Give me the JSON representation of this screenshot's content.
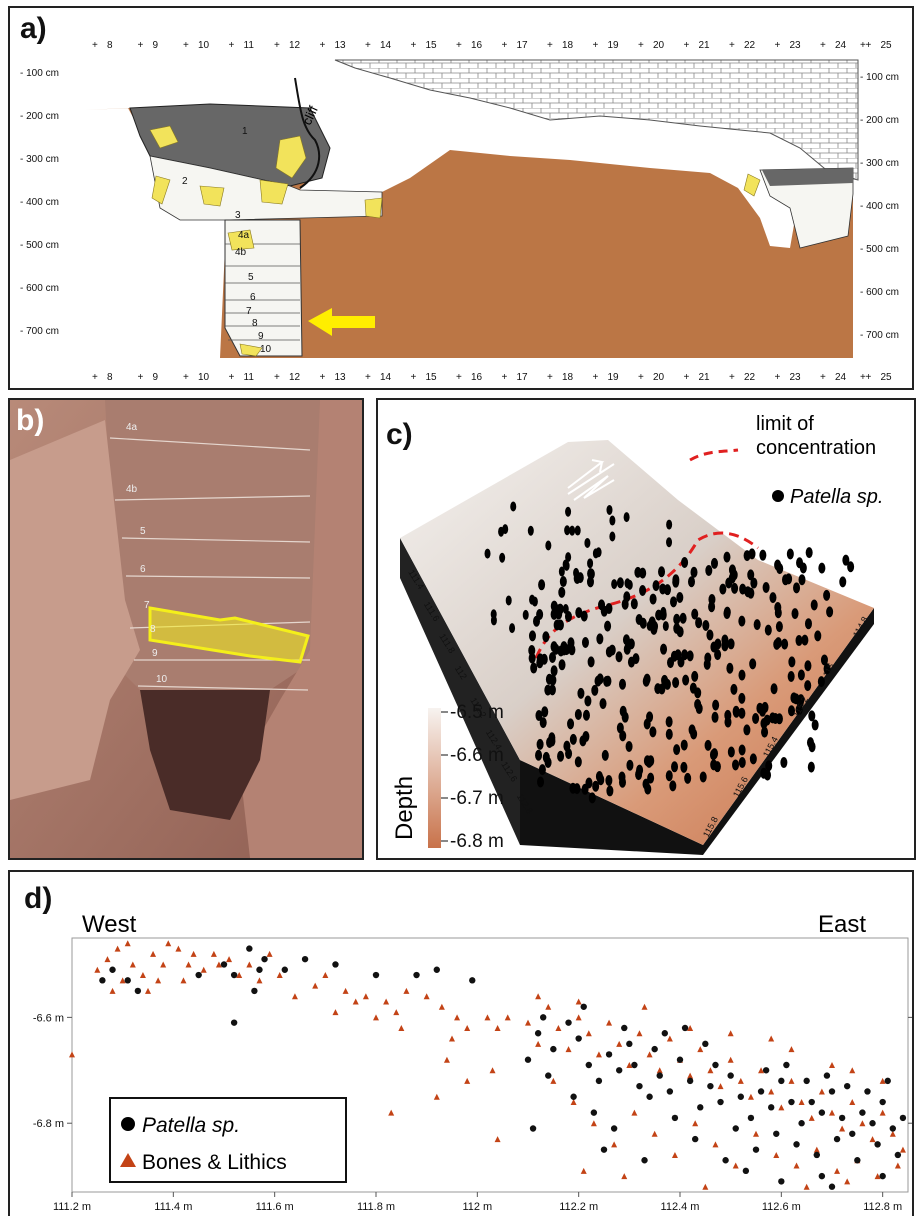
{
  "panel_a": {
    "label": "a)",
    "grid_numbers": [
      "8",
      "9",
      "10",
      "11",
      "12",
      "13",
      "14",
      "15",
      "16",
      "17",
      "18",
      "19",
      "20",
      "21",
      "22",
      "23",
      "24",
      "25"
    ],
    "depth_labels_left": [
      "- 100 cm",
      "- 200 cm",
      "- 300 cm",
      "- 400 cm",
      "- 500 cm",
      "- 600 cm",
      "- 700 cm"
    ],
    "depth_labels_right": [
      "- 100 cm",
      "- 200 cm",
      "- 300 cm",
      "- 400 cm",
      "- 500 cm",
      "- 600 cm",
      "- 700 cm"
    ],
    "cliff_label": "cliff",
    "layer_labels": [
      "1",
      "2",
      "3",
      "4a",
      "4b",
      "5",
      "6",
      "7",
      "8",
      "9",
      "10"
    ],
    "colors": {
      "sediment": "#bb7645",
      "dark_layer": "#666666",
      "yellow": "#f2e35b",
      "arrow": "#ffee00"
    }
  },
  "panel_b": {
    "label": "b)",
    "layer_labels": [
      "4a",
      "4b",
      "5",
      "6",
      "7",
      "8",
      "9",
      "10"
    ],
    "highlight_color": "#f4ef1a"
  },
  "panel_c": {
    "label": "c)",
    "legend_line": "limit of concentration",
    "legend_line_parts": [
      "limit of",
      "concentration"
    ],
    "legend_dot": "Patella sp.",
    "depth_title": "Depth",
    "depth_ticks": [
      "-6.5 m",
      "-6.6 m",
      "-6.7 m",
      "-6.8 m"
    ],
    "left_axis_ticks": [
      "111.4",
      "111.6",
      "111.8",
      "112",
      "112.2",
      "112.4",
      "112.6",
      "112.8"
    ],
    "right_axis_ticks": [
      "115.8",
      "115.6",
      "115.4",
      "115.2",
      "115",
      "114.8"
    ],
    "colors": {
      "light": "#f4f1ee",
      "dark": "#c8724a",
      "dash": "#e02020"
    }
  },
  "panel_d": {
    "label": "d)",
    "west_label": "West",
    "east_label": "East",
    "legend": {
      "patella": "Patella sp.",
      "bones": "Bones & Lithics"
    },
    "chart_data": {
      "type": "scatter",
      "xlim": [
        111.2,
        112.85
      ],
      "ylim": [
        -6.93,
        -6.45
      ],
      "x_ticks": [
        "111.2 m",
        "111.4 m",
        "111.6 m",
        "111.8 m",
        "112 m",
        "112.2 m",
        "112.4 m",
        "112.6 m",
        "112.8 m"
      ],
      "y_ticks": [
        "-6.6 m",
        "-6.8 m"
      ],
      "series": [
        {
          "name": "Patella sp.",
          "color": "#111111",
          "points": [
            [
              111.26,
              -6.53
            ],
            [
              111.28,
              -6.51
            ],
            [
              111.31,
              -6.53
            ],
            [
              111.33,
              -6.55
            ],
            [
              111.45,
              -6.52
            ],
            [
              111.5,
              -6.5
            ],
            [
              111.52,
              -6.52
            ],
            [
              111.55,
              -6.47
            ],
            [
              111.57,
              -6.51
            ],
            [
              111.62,
              -6.51
            ],
            [
              111.66,
              -6.49
            ],
            [
              111.72,
              -6.5
            ],
            [
              111.8,
              -6.52
            ],
            [
              111.88,
              -6.52
            ],
            [
              111.92,
              -6.51
            ],
            [
              111.99,
              -6.53
            ],
            [
              111.52,
              -6.61
            ],
            [
              111.58,
              -6.49
            ],
            [
              111.56,
              -6.55
            ],
            [
              112.1,
              -6.68
            ],
            [
              112.12,
              -6.63
            ],
            [
              112.15,
              -6.66
            ],
            [
              112.18,
              -6.61
            ],
            [
              112.2,
              -6.64
            ],
            [
              112.22,
              -6.69
            ],
            [
              112.24,
              -6.72
            ],
            [
              112.26,
              -6.67
            ],
            [
              112.28,
              -6.7
            ],
            [
              112.3,
              -6.65
            ],
            [
              112.32,
              -6.73
            ],
            [
              112.34,
              -6.75
            ],
            [
              112.36,
              -6.71
            ],
            [
              112.38,
              -6.74
            ],
            [
              112.4,
              -6.68
            ],
            [
              112.42,
              -6.72
            ],
            [
              112.44,
              -6.77
            ],
            [
              112.46,
              -6.73
            ],
            [
              112.48,
              -6.76
            ],
            [
              112.5,
              -6.71
            ],
            [
              112.52,
              -6.75
            ],
            [
              112.54,
              -6.79
            ],
            [
              112.56,
              -6.74
            ],
            [
              112.58,
              -6.77
            ],
            [
              112.6,
              -6.72
            ],
            [
              112.62,
              -6.76
            ],
            [
              112.64,
              -6.8
            ],
            [
              112.66,
              -6.76
            ],
            [
              112.68,
              -6.78
            ],
            [
              112.7,
              -6.74
            ],
            [
              112.72,
              -6.79
            ],
            [
              112.74,
              -6.82
            ],
            [
              112.76,
              -6.78
            ],
            [
              112.78,
              -6.8
            ],
            [
              112.8,
              -6.76
            ],
            [
              112.82,
              -6.81
            ],
            [
              112.84,
              -6.79
            ],
            [
              112.14,
              -6.71
            ],
            [
              112.19,
              -6.75
            ],
            [
              112.23,
              -6.78
            ],
            [
              112.27,
              -6.81
            ],
            [
              112.31,
              -6.69
            ],
            [
              112.35,
              -6.66
            ],
            [
              112.39,
              -6.79
            ],
            [
              112.43,
              -6.83
            ],
            [
              112.47,
              -6.69
            ],
            [
              112.51,
              -6.81
            ],
            [
              112.55,
              -6.85
            ],
            [
              112.59,
              -6.82
            ],
            [
              112.63,
              -6.84
            ],
            [
              112.67,
              -6.86
            ],
            [
              112.71,
              -6.83
            ],
            [
              112.75,
              -6.87
            ],
            [
              112.79,
              -6.84
            ],
            [
              112.83,
              -6.86
            ],
            [
              112.13,
              -6.6
            ],
            [
              112.21,
              -6.58
            ],
            [
              112.29,
              -6.62
            ],
            [
              112.37,
              -6.63
            ],
            [
              112.41,
              -6.62
            ],
            [
              112.45,
              -6.65
            ],
            [
              112.57,
              -6.7
            ],
            [
              112.61,
              -6.69
            ],
            [
              112.65,
              -6.72
            ],
            [
              112.69,
              -6.71
            ],
            [
              112.73,
              -6.73
            ],
            [
              112.77,
              -6.74
            ],
            [
              112.81,
              -6.72
            ],
            [
              112.6,
              -6.91
            ],
            [
              112.7,
              -6.92
            ],
            [
              112.68,
              -6.9
            ],
            [
              112.8,
              -6.9
            ],
            [
              112.11,
              -6.81
            ],
            [
              112.25,
              -6.85
            ],
            [
              112.33,
              -6.87
            ],
            [
              112.49,
              -6.87
            ],
            [
              112.53,
              -6.89
            ]
          ]
        },
        {
          "name": "Bones & Lithics",
          "color": "#c34316",
          "points": [
            [
              111.2,
              -6.67
            ],
            [
              111.25,
              -6.51
            ],
            [
              111.27,
              -6.49
            ],
            [
              111.29,
              -6.47
            ],
            [
              111.31,
              -6.46
            ],
            [
              111.32,
              -6.5
            ],
            [
              111.34,
              -6.52
            ],
            [
              111.36,
              -6.48
            ],
            [
              111.38,
              -6.5
            ],
            [
              111.39,
              -6.46
            ],
            [
              111.41,
              -6.47
            ],
            [
              111.43,
              -6.5
            ],
            [
              111.44,
              -6.48
            ],
            [
              111.46,
              -6.51
            ],
            [
              111.48,
              -6.48
            ],
            [
              111.49,
              -6.5
            ],
            [
              111.51,
              -6.49
            ],
            [
              111.53,
              -6.52
            ],
            [
              111.55,
              -6.5
            ],
            [
              111.57,
              -6.53
            ],
            [
              111.59,
              -6.48
            ],
            [
              111.28,
              -6.55
            ],
            [
              111.3,
              -6.53
            ],
            [
              111.35,
              -6.55
            ],
            [
              111.37,
              -6.53
            ],
            [
              111.42,
              -6.53
            ],
            [
              111.61,
              -6.52
            ],
            [
              111.64,
              -6.56
            ],
            [
              111.68,
              -6.54
            ],
            [
              111.7,
              -6.52
            ],
            [
              111.74,
              -6.55
            ],
            [
              111.76,
              -6.57
            ],
            [
              111.78,
              -6.56
            ],
            [
              111.82,
              -6.57
            ],
            [
              111.84,
              -6.59
            ],
            [
              111.86,
              -6.55
            ],
            [
              111.9,
              -6.56
            ],
            [
              111.93,
              -6.58
            ],
            [
              111.96,
              -6.6
            ],
            [
              111.72,
              -6.59
            ],
            [
              111.8,
              -6.6
            ],
            [
              111.85,
              -6.62
            ],
            [
              111.95,
              -6.64
            ],
            [
              111.98,
              -6.62
            ],
            [
              112.02,
              -6.6
            ],
            [
              112.04,
              -6.62
            ],
            [
              112.06,
              -6.6
            ],
            [
              111.83,
              -6.78
            ],
            [
              111.92,
              -6.75
            ],
            [
              111.98,
              -6.72
            ],
            [
              112.03,
              -6.7
            ],
            [
              112.04,
              -6.83
            ],
            [
              111.94,
              -6.68
            ],
            [
              112.1,
              -6.61
            ],
            [
              112.12,
              -6.65
            ],
            [
              112.14,
              -6.58
            ],
            [
              112.16,
              -6.62
            ],
            [
              112.18,
              -6.66
            ],
            [
              112.2,
              -6.6
            ],
            [
              112.22,
              -6.63
            ],
            [
              112.24,
              -6.67
            ],
            [
              112.26,
              -6.61
            ],
            [
              112.28,
              -6.65
            ],
            [
              112.3,
              -6.69
            ],
            [
              112.32,
              -6.63
            ],
            [
              112.34,
              -6.67
            ],
            [
              112.36,
              -6.7
            ],
            [
              112.38,
              -6.64
            ],
            [
              112.4,
              -6.68
            ],
            [
              112.42,
              -6.71
            ],
            [
              112.44,
              -6.66
            ],
            [
              112.46,
              -6.7
            ],
            [
              112.48,
              -6.73
            ],
            [
              112.5,
              -6.68
            ],
            [
              112.52,
              -6.72
            ],
            [
              112.54,
              -6.75
            ],
            [
              112.56,
              -6.7
            ],
            [
              112.58,
              -6.74
            ],
            [
              112.6,
              -6.77
            ],
            [
              112.62,
              -6.72
            ],
            [
              112.64,
              -6.76
            ],
            [
              112.66,
              -6.79
            ],
            [
              112.68,
              -6.74
            ],
            [
              112.7,
              -6.78
            ],
            [
              112.72,
              -6.81
            ],
            [
              112.74,
              -6.76
            ],
            [
              112.76,
              -6.8
            ],
            [
              112.78,
              -6.83
            ],
            [
              112.8,
              -6.78
            ],
            [
              112.82,
              -6.82
            ],
            [
              112.84,
              -6.85
            ],
            [
              112.15,
              -6.72
            ],
            [
              112.19,
              -6.76
            ],
            [
              112.23,
              -6.8
            ],
            [
              112.27,
              -6.84
            ],
            [
              112.31,
              -6.78
            ],
            [
              112.35,
              -6.82
            ],
            [
              112.39,
              -6.86
            ],
            [
              112.43,
              -6.8
            ],
            [
              112.47,
              -6.84
            ],
            [
              112.51,
              -6.88
            ],
            [
              112.55,
              -6.82
            ],
            [
              112.59,
              -6.86
            ],
            [
              112.63,
              -6.88
            ],
            [
              112.67,
              -6.85
            ],
            [
              112.71,
              -6.89
            ],
            [
              112.75,
              -6.87
            ],
            [
              112.79,
              -6.9
            ],
            [
              112.83,
              -6.88
            ],
            [
              112.21,
              -6.89
            ],
            [
              112.29,
              -6.9
            ],
            [
              112.45,
              -6.92
            ],
            [
              112.65,
              -6.92
            ],
            [
              112.73,
              -6.91
            ],
            [
              112.58,
              -6.64
            ],
            [
              112.62,
              -6.66
            ],
            [
              112.7,
              -6.69
            ],
            [
              112.74,
              -6.7
            ],
            [
              112.8,
              -6.72
            ],
            [
              112.12,
              -6.56
            ],
            [
              112.2,
              -6.57
            ],
            [
              112.33,
              -6.58
            ],
            [
              112.42,
              -6.62
            ],
            [
              112.5,
              -6.63
            ]
          ]
        }
      ]
    }
  }
}
